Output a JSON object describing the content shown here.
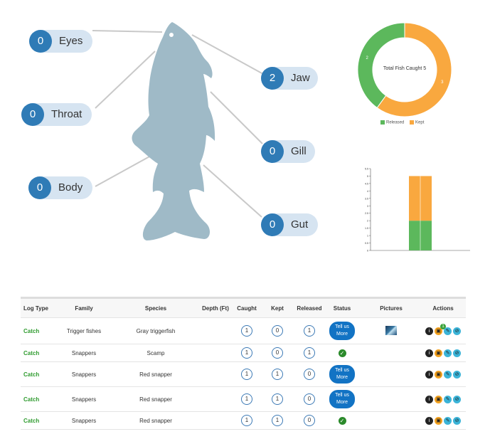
{
  "hooks": [
    {
      "key": "eyes",
      "label": "Eyes",
      "count": "0"
    },
    {
      "key": "throat",
      "label": "Throat",
      "count": "0"
    },
    {
      "key": "body",
      "label": "Body",
      "count": "0"
    },
    {
      "key": "jaw",
      "label": "Jaw",
      "count": "2"
    },
    {
      "key": "gill",
      "label": "Gill",
      "count": "0"
    },
    {
      "key": "gut",
      "label": "Gut",
      "count": "0"
    }
  ],
  "colors": {
    "released": "#5cb85c",
    "kept": "#f9a83f",
    "pill": "#d6e4f1",
    "badge": "#2f7bb6",
    "fish": "#9fbac7"
  },
  "chart_data": [
    {
      "type": "pie",
      "title": "Total Fish Caught 5",
      "labels": [
        "Released",
        "Kept"
      ],
      "values": [
        2,
        3
      ]
    },
    {
      "type": "bar",
      "stacked": true,
      "categories": [
        ""
      ],
      "series": [
        {
          "name": "Released",
          "values": [
            2
          ]
        },
        {
          "name": "Kept",
          "values": [
            3
          ]
        }
      ],
      "ylim": [
        0,
        5.5
      ],
      "yticks": [
        "0",
        "0.5",
        "1",
        "1.5",
        "2",
        "2.5",
        "3",
        "3.5",
        "4",
        "4.5",
        "5",
        "5.5"
      ]
    }
  ],
  "table": {
    "headers": [
      "Log Type",
      "Family",
      "Species",
      "Depth (Ft)",
      "Caught",
      "Kept",
      "Released",
      "Status",
      "Pictures",
      "Actions"
    ],
    "rows": [
      {
        "log_type": "Catch",
        "family": "Trigger fishes",
        "species": "Gray triggerfish",
        "depth": "",
        "caught": "1",
        "kept": "0",
        "released": "1",
        "status": "Tell us More",
        "has_picture": true,
        "badge": "1"
      },
      {
        "log_type": "Catch",
        "family": "Snappers",
        "species": "Scamp",
        "depth": "",
        "caught": "1",
        "kept": "0",
        "released": "1",
        "status": "check",
        "has_picture": false,
        "badge": ""
      },
      {
        "log_type": "Catch",
        "family": "Snappers",
        "species": "Red snapper",
        "depth": "",
        "caught": "1",
        "kept": "1",
        "released": "0",
        "status": "Tell us More",
        "has_picture": false,
        "badge": ""
      },
      {
        "log_type": "Catch",
        "family": "Snappers",
        "species": "Red snapper",
        "depth": "",
        "caught": "1",
        "kept": "1",
        "released": "0",
        "status": "Tell us More",
        "has_picture": false,
        "badge": ""
      },
      {
        "log_type": "Catch",
        "family": "Snappers",
        "species": "Red snapper",
        "depth": "",
        "caught": "1",
        "kept": "1",
        "released": "0",
        "status": "check",
        "has_picture": false,
        "badge": ""
      }
    ]
  }
}
